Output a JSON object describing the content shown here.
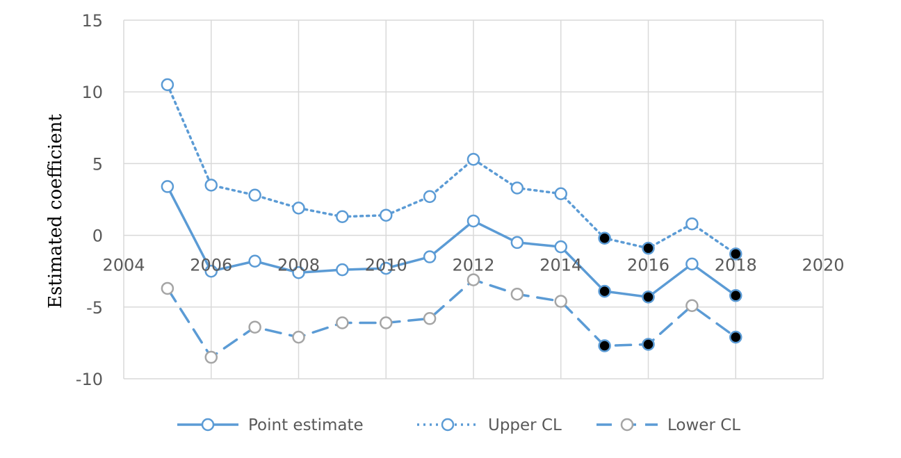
{
  "chart_data": {
    "type": "line",
    "title": "",
    "xlabel": "",
    "ylabel": "Estimated coefficient",
    "xlim": [
      2004,
      2020
    ],
    "ylim": [
      -10,
      15
    ],
    "x_ticks": [
      "2004",
      "2006",
      "2008",
      "2010",
      "2012",
      "2014",
      "2016",
      "2018",
      "2020"
    ],
    "y_ticks": [
      "15",
      "10",
      "5",
      "0",
      "-5",
      "-10"
    ],
    "grid": true,
    "legend_position": "bottom",
    "x": [
      2005,
      2006,
      2007,
      2008,
      2009,
      2010,
      2011,
      2012,
      2013,
      2014,
      2015,
      2016,
      2017,
      2018
    ],
    "series": [
      {
        "name": "Point estimate",
        "line_style": "solid",
        "values": [
          3.4,
          -2.5,
          -1.8,
          -2.6,
          -2.4,
          -2.3,
          -1.5,
          1.0,
          -0.5,
          -0.8,
          -3.9,
          -4.3,
          -2.0,
          -4.2
        ],
        "filled": [
          false,
          false,
          false,
          false,
          false,
          false,
          false,
          false,
          false,
          false,
          true,
          true,
          false,
          true
        ]
      },
      {
        "name": "Upper CL",
        "line_style": "dotted",
        "values": [
          10.5,
          3.5,
          2.8,
          1.9,
          1.3,
          1.4,
          2.7,
          5.3,
          3.3,
          2.9,
          -0.2,
          -0.9,
          0.8,
          -1.3
        ],
        "filled": [
          false,
          false,
          false,
          false,
          false,
          false,
          false,
          false,
          false,
          false,
          true,
          true,
          false,
          true
        ]
      },
      {
        "name": "Lower CL",
        "line_style": "dashed",
        "values": [
          -3.7,
          -8.5,
          -6.4,
          -7.1,
          -6.1,
          -6.1,
          -5.8,
          -3.1,
          -4.1,
          -4.6,
          -7.7,
          -7.6,
          -4.9,
          -7.1
        ],
        "filled": [
          false,
          false,
          false,
          false,
          false,
          false,
          false,
          false,
          false,
          false,
          true,
          true,
          false,
          true
        ]
      }
    ],
    "colors": {
      "line": "#5b9bd5",
      "upper_marker": "#5b9bd5",
      "lower_marker": "#a5a5a5",
      "filled_marker": "#000000",
      "grid": "#d9d9d9",
      "tick_text": "#595959"
    }
  }
}
